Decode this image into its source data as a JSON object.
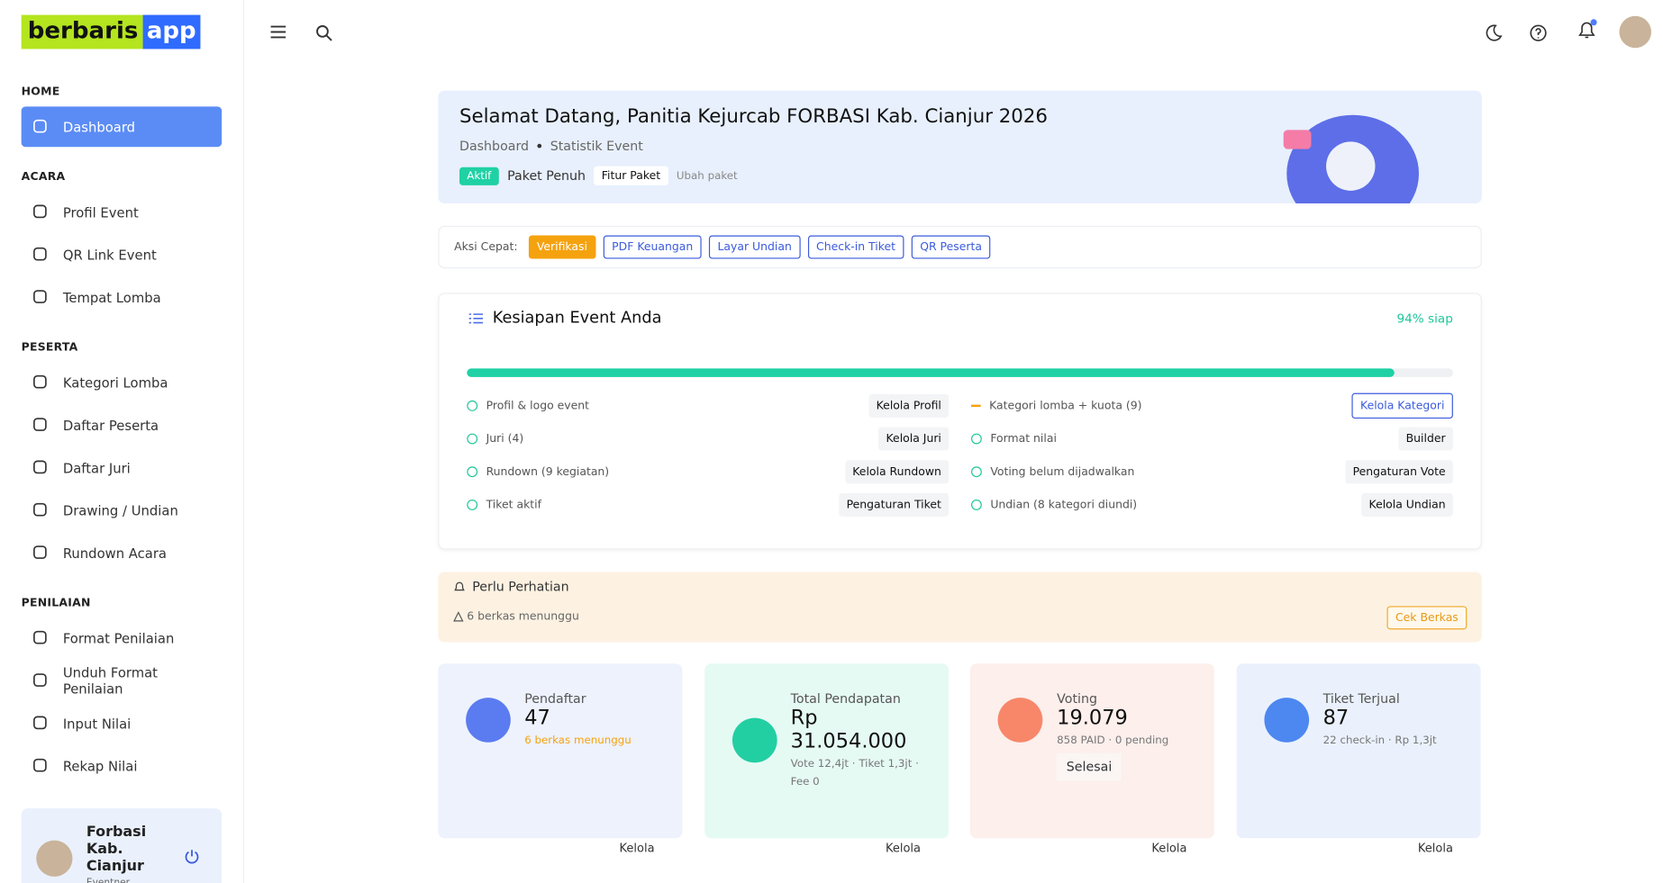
{
  "brand": {
    "part1": "berbaris",
    "part2": "app"
  },
  "sidebar": [
    {
      "title": "HOME",
      "items": [
        "Dashboard"
      ]
    },
    {
      "title": "ACARA",
      "items": [
        "Profil Event",
        "QR Link Event",
        "Tempat Lomba"
      ]
    },
    {
      "title": "PESERTA",
      "items": [
        "Kategori Lomba",
        "Daftar Peserta",
        "Daftar Juri",
        "Drawing / Undian",
        "Rundown Acara"
      ]
    },
    {
      "title": "PENILAIAN",
      "items": [
        "Format Penilaian",
        "Unduh Format Penilaian",
        "Input Nilai",
        "Rekap Nilai"
      ]
    }
  ],
  "user": {
    "name": "Forbasi Kab. Cianjur",
    "role": "Eventner"
  },
  "banner": {
    "title": "Selamat Datang, Panitia Kejurcab FORBASI Kab. Cianjur 2026",
    "breadcrumb": [
      "Dashboard",
      "Statistik Event"
    ],
    "badge": "Aktif",
    "package": "Paket Penuh",
    "features": "Fitur Paket",
    "change": "Ubah paket"
  },
  "quick_actions": {
    "label": "Aksi Cepat:",
    "buttons": [
      "Verifikasi",
      "PDF Keuangan",
      "Layar Undian",
      "Check-in Tiket",
      "QR Peserta"
    ]
  },
  "readiness": {
    "title": "Kesiapan Event Anda",
    "progress": 94,
    "progress_label": "94% siap",
    "left": [
      {
        "label": "Profil & logo event",
        "action": "Kelola Profil"
      },
      {
        "label": "Juri (4)",
        "action": "Kelola Juri"
      },
      {
        "label": "Rundown (9 kegiatan)",
        "action": "Kelola Rundown"
      },
      {
        "label": "Tiket aktif",
        "action": "Pengaturan Tiket"
      }
    ],
    "right": [
      {
        "label": "Kategori lomba + kuota (9)",
        "action": "Kelola Kategori"
      },
      {
        "label": "Format nilai",
        "action": "Builder"
      },
      {
        "label": "Voting belum dijadwalkan",
        "action": "Pengaturan Vote"
      },
      {
        "label": "Undian (8 kategori diundi)",
        "action": "Kelola Undian"
      }
    ]
  },
  "attention": {
    "title": "Perlu Perhatian",
    "note": "6 berkas menunggu",
    "button": "Cek Berkas"
  },
  "stats": [
    {
      "label": "Pendaftar",
      "value": "47",
      "sub": "6 berkas menunggu",
      "action": "Kelola"
    },
    {
      "label": "Total Pendapatan",
      "value": "Rp 31.054.000",
      "sub": "Vote 12,4jt · Tiket 1,3jt · Fee 0",
      "action": "Kelola"
    },
    {
      "label": "Voting",
      "value": "19.079",
      "sub": "858 PAID · 0 pending",
      "badge": "Selesai",
      "action": "Kelola"
    },
    {
      "label": "Tiket Terjual",
      "value": "87",
      "sub": "22 check-in · Rp 1,3jt",
      "action": "Kelola"
    }
  ]
}
